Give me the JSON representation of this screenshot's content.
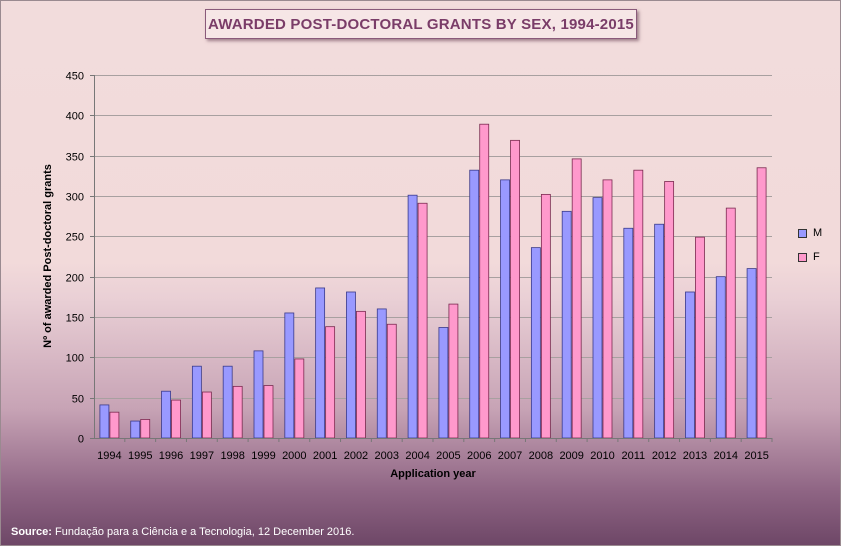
{
  "chart_data": {
    "type": "bar",
    "title": "AWARDED POST-DOCTORAL GRANTS BY SEX, 1994-2015",
    "xlabel": "Application year",
    "ylabel": "Nº of awarded Post-doctoral grants",
    "ylim": [
      0,
      450
    ],
    "yticks": [
      0,
      50,
      100,
      150,
      200,
      250,
      300,
      350,
      400,
      450
    ],
    "grid": true,
    "legend_position": "right",
    "categories": [
      "1994",
      "1995",
      "1996",
      "1997",
      "1998",
      "1999",
      "2000",
      "2001",
      "2002",
      "2003",
      "2004",
      "2005",
      "2006",
      "2007",
      "2008",
      "2009",
      "2010",
      "2011",
      "2012",
      "2013",
      "2014",
      "2015"
    ],
    "series": [
      {
        "name": "M",
        "color": "#9999ff",
        "values": [
          41,
          21,
          58,
          89,
          89,
          108,
          155,
          186,
          181,
          160,
          301,
          137,
          332,
          320,
          236,
          281,
          298,
          260,
          265,
          181,
          200,
          210
        ]
      },
      {
        "name": "F",
        "color": "#ff99cc",
        "values": [
          32,
          23,
          47,
          57,
          64,
          65,
          98,
          138,
          157,
          141,
          291,
          166,
          389,
          369,
          302,
          346,
          320,
          332,
          318,
          249,
          285,
          335
        ]
      }
    ]
  },
  "source": {
    "label": "Source:",
    "text": " Fundação para a Ciência e a Tecnologia, 12 December 2016."
  }
}
